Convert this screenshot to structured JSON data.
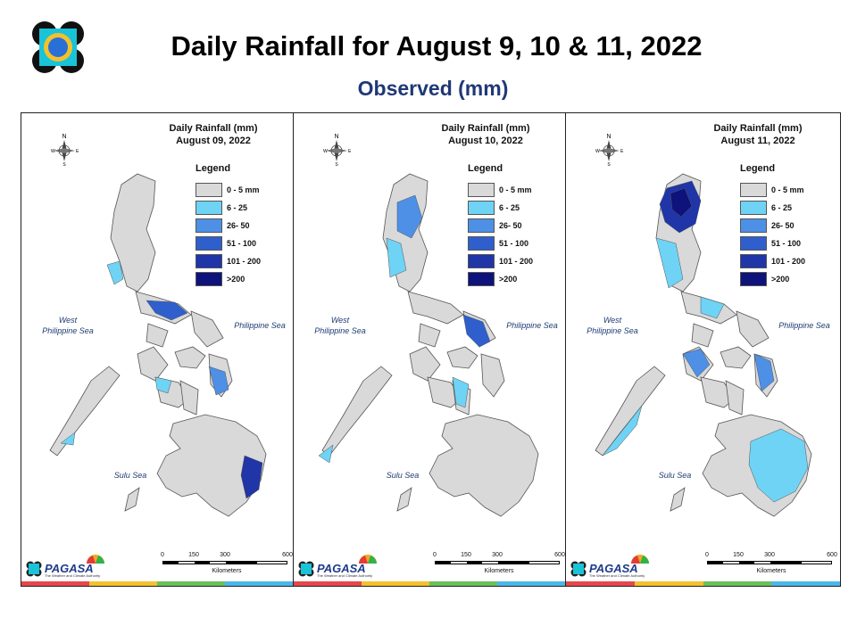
{
  "title": "Daily Rainfall for August 9, 10 & 11, 2022",
  "subtitle": "Observed (mm)",
  "legend": {
    "title": "Legend",
    "items": [
      {
        "label": "0 - 5 mm",
        "color": "#d9d9d9"
      },
      {
        "label": "6 - 25",
        "color": "#6fd3f5"
      },
      {
        "label": "26- 50",
        "color": "#4d90e6"
      },
      {
        "label": "51 - 100",
        "color": "#2f5fcc"
      },
      {
        "label": "101 - 200",
        "color": "#1f35a8"
      },
      {
        "label": ">200",
        "color": "#0d137a"
      }
    ]
  },
  "panels": [
    {
      "title_line1": "Daily Rainfall (mm)",
      "title_line2": "August 09, 2022"
    },
    {
      "title_line1": "Daily Rainfall (mm)",
      "title_line2": "August 10, 2022"
    },
    {
      "title_line1": "Daily Rainfall (mm)",
      "title_line2": "August 11, 2022"
    }
  ],
  "seas": {
    "west": "West\nPhilippine Sea",
    "east": "Philippine Sea",
    "sulu": "Sulu Sea"
  },
  "north_label": "N",
  "compass": {
    "e": "E",
    "w": "W",
    "s": "S"
  },
  "scale": {
    "ticks": [
      "0",
      "150",
      "300",
      "600"
    ],
    "unit": "Kilometers"
  },
  "branding": {
    "name": "PAGASA",
    "tagline": "The Weather and Climate Authority"
  }
}
